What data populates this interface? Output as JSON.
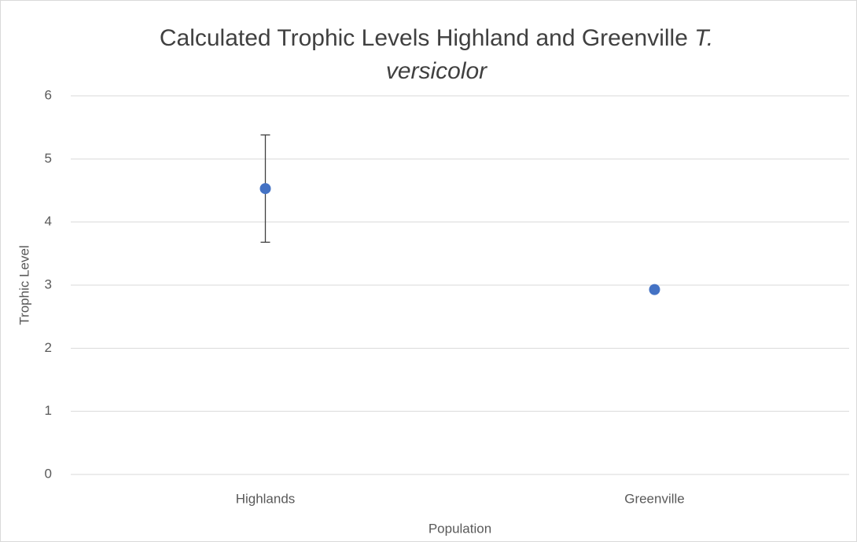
{
  "chart_data": {
    "type": "scatter",
    "title": "Calculated Trophic Levels Highland and Greenville",
    "title_species": [
      "T.",
      "versicolor"
    ],
    "x_label": "Population",
    "y_label": "Trophic Level",
    "categories": [
      "Highlands",
      "Greenville"
    ],
    "values": [
      4.53,
      2.93
    ],
    "errors": [
      0.85,
      null
    ],
    "color": "#4472c4",
    "ylim": [
      0,
      6
    ],
    "yticks": [
      0,
      1,
      2,
      3,
      4,
      5,
      6
    ],
    "grid": true
  }
}
